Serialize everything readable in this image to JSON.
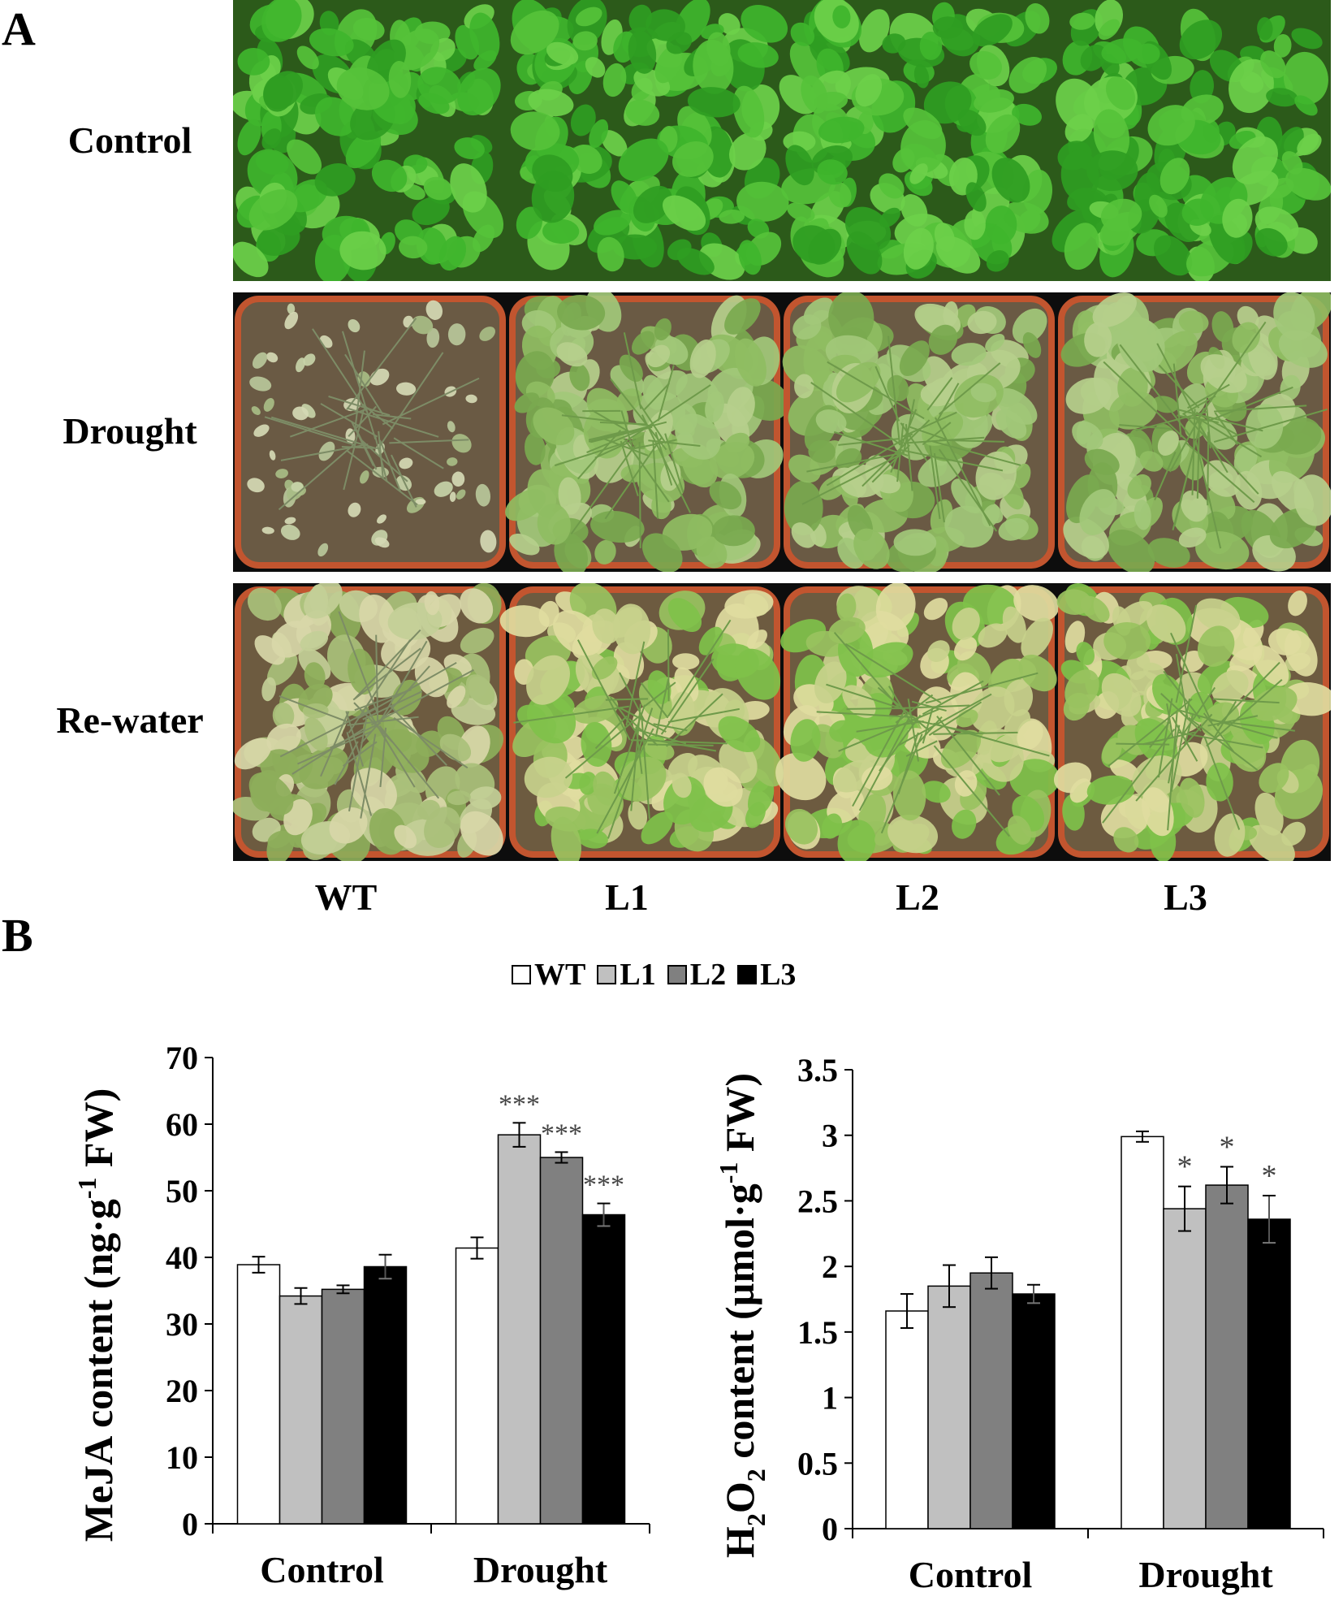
{
  "panel_a": {
    "letter": "A",
    "rows": [
      {
        "label": "Control",
        "kind": "control"
      },
      {
        "label": "Drought",
        "kind": "drought"
      },
      {
        "label": "Re-water",
        "kind": "rewater"
      }
    ],
    "columns": [
      "WT",
      "L1",
      "L2",
      "L3"
    ]
  },
  "panel_b": {
    "letter": "B"
  },
  "legend": [
    {
      "name": "WT",
      "color": "#ffffff"
    },
    {
      "name": "L1",
      "color": "#c0c0c0"
    },
    {
      "name": "L2",
      "color": "#808080"
    },
    {
      "name": "L3",
      "color": "#000000"
    }
  ],
  "chart_data": [
    {
      "type": "bar",
      "title": "",
      "ylabel": "MeJA content  (ng·g⁻¹ FW)",
      "ylabel_parts": {
        "pre": "MeJA content  (ng·g",
        "sup": "-1",
        "post": " FW)"
      },
      "ylim": [
        0,
        70
      ],
      "yticks": [
        0,
        10,
        20,
        30,
        40,
        50,
        60,
        70
      ],
      "categories": [
        "Control",
        "Drought"
      ],
      "series": [
        {
          "name": "WT",
          "values": [
            38.9,
            41.4
          ],
          "errors": [
            1.2,
            1.6
          ],
          "sig": [
            "",
            ""
          ]
        },
        {
          "name": "L1",
          "values": [
            34.2,
            58.4
          ],
          "errors": [
            1.2,
            1.8
          ],
          "sig": [
            "",
            "***"
          ]
        },
        {
          "name": "L2",
          "values": [
            35.2,
            55.0
          ],
          "errors": [
            0.6,
            0.8
          ],
          "sig": [
            "",
            "***"
          ]
        },
        {
          "name": "L3",
          "values": [
            38.6,
            46.4
          ],
          "errors": [
            1.8,
            1.7
          ],
          "sig": [
            "",
            "***"
          ]
        }
      ]
    },
    {
      "type": "bar",
      "title": "",
      "ylabel": "H₂O₂ content (µmol·g⁻¹ FW)",
      "ylabel_parts": {
        "pre": "H",
        "sub": "2",
        "mid": "O",
        "sub2": "2",
        "post1": " content (µmol·g",
        "sup": "-1",
        "post": " FW)"
      },
      "ylim": [
        0,
        3.5
      ],
      "yticks": [
        0,
        0.5,
        1,
        1.5,
        2,
        2.5,
        3,
        3.5
      ],
      "categories": [
        "Control",
        "Drought"
      ],
      "series": [
        {
          "name": "WT",
          "values": [
            1.66,
            2.99
          ],
          "errors": [
            0.13,
            0.04
          ],
          "sig": [
            "",
            ""
          ]
        },
        {
          "name": "L1",
          "values": [
            1.85,
            2.44
          ],
          "errors": [
            0.16,
            0.17
          ],
          "sig": [
            "",
            "*"
          ]
        },
        {
          "name": "L2",
          "values": [
            1.95,
            2.62
          ],
          "errors": [
            0.12,
            0.14
          ],
          "sig": [
            "",
            "*"
          ]
        },
        {
          "name": "L3",
          "values": [
            1.79,
            2.36
          ],
          "errors": [
            0.07,
            0.18
          ],
          "sig": [
            "",
            "*"
          ]
        }
      ]
    }
  ]
}
